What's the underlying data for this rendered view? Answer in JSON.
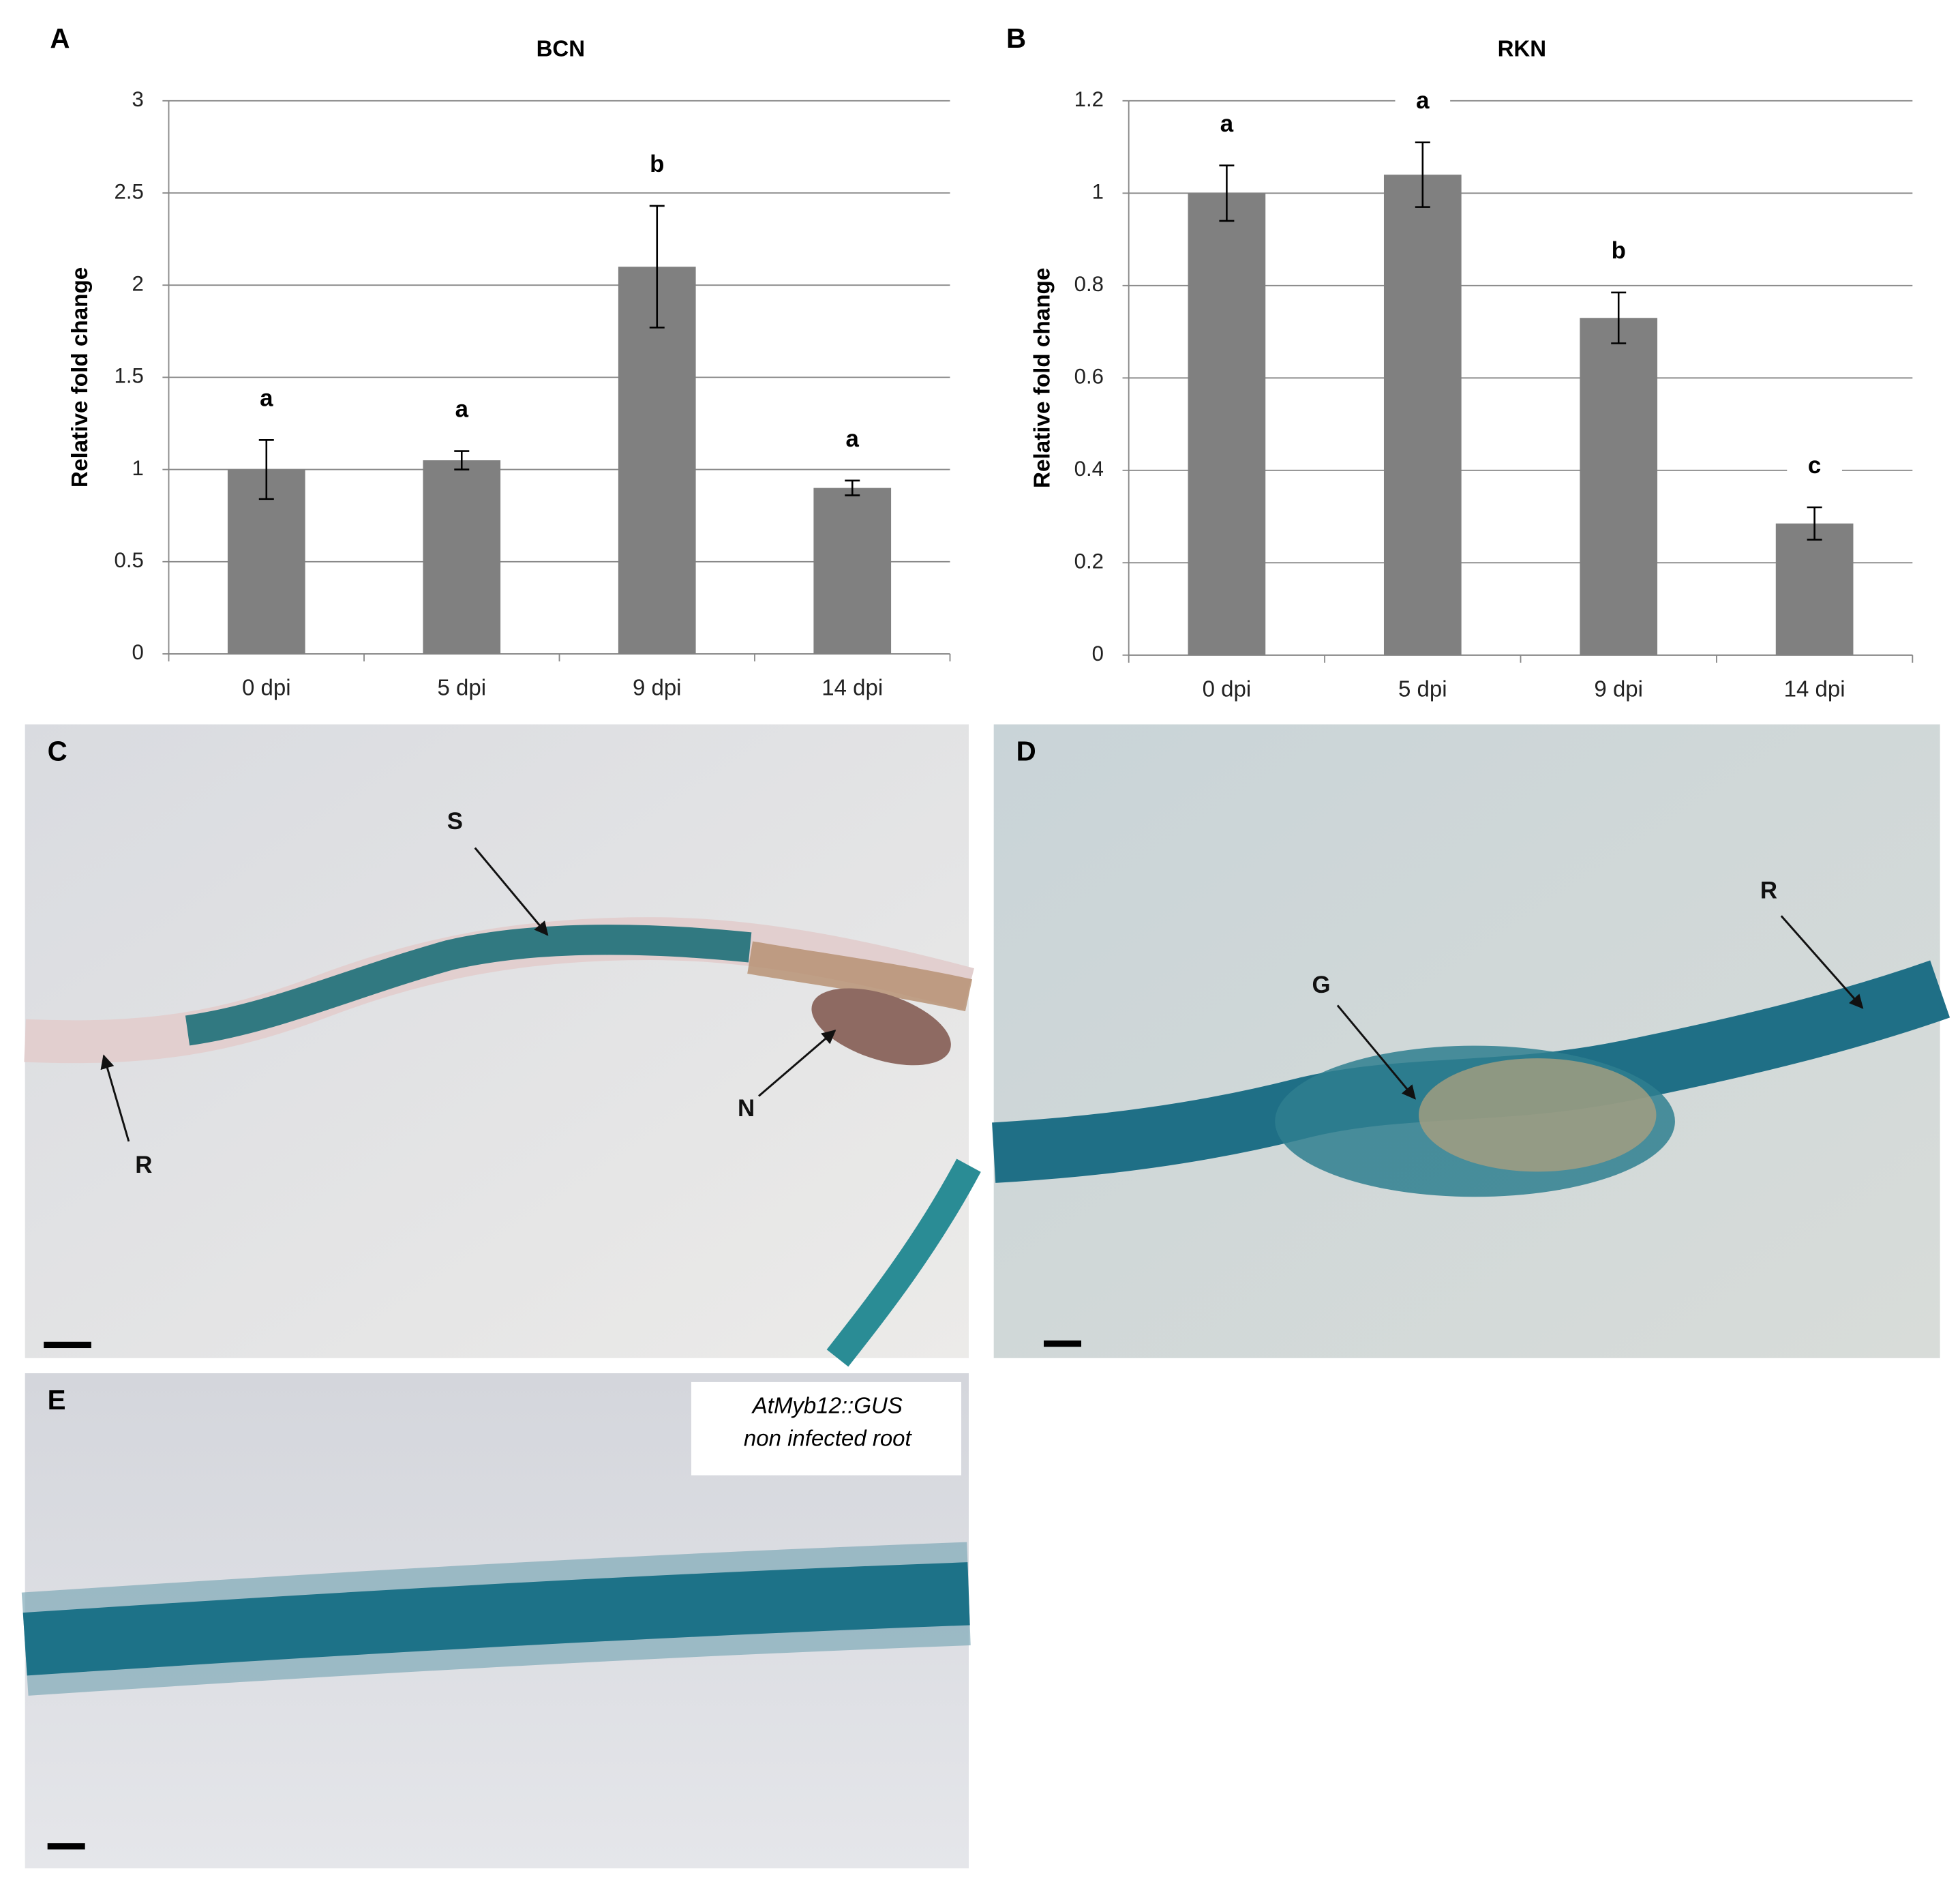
{
  "chart_data": [
    {
      "type": "bar",
      "panel_label": "A",
      "title": "BCN",
      "ylabel": "Relative fold change",
      "categories": [
        "0 dpi",
        "5 dpi",
        "9 dpi",
        "14 dpi"
      ],
      "values": [
        1.0,
        1.05,
        2.1,
        0.9
      ],
      "errors": [
        0.16,
        0.05,
        0.33,
        0.04
      ],
      "significance": [
        "a",
        "a",
        "b",
        "a"
      ],
      "color": "#808080",
      "ylim": [
        0,
        3
      ],
      "yticks": [
        0,
        0.5,
        1,
        1.5,
        2,
        2.5,
        3
      ],
      "grid": true
    },
    {
      "type": "bar",
      "panel_label": "B",
      "title": "RKN",
      "ylabel": "Relative fold change",
      "categories": [
        "0 dpi",
        "5 dpi",
        "9 dpi",
        "14 dpi"
      ],
      "values": [
        1.0,
        1.04,
        0.73,
        0.285
      ],
      "errors": [
        0.06,
        0.07,
        0.055,
        0.035
      ],
      "significance": [
        "a",
        "a",
        "b",
        "c"
      ],
      "color": "#808080",
      "ylim": [
        0,
        1.2
      ],
      "yticks": [
        0,
        0.2,
        0.4,
        0.6,
        0.8,
        1,
        1.2
      ],
      "grid": true
    }
  ],
  "panels": [
    {
      "label": "C",
      "markers": [
        "S",
        "R",
        "N"
      ]
    },
    {
      "label": "D",
      "markers": [
        "G",
        "R"
      ]
    },
    {
      "label": "E",
      "caption": [
        "AtMyb12::GUS",
        "non infected root"
      ]
    }
  ]
}
